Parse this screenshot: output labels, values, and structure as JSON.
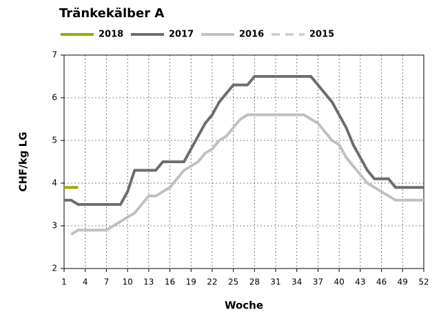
{
  "chart_data": {
    "type": "line",
    "title": "Tränkekälber A",
    "xlabel": "Woche",
    "ylabel": "CHF/kg LG",
    "x": [
      1,
      2,
      3,
      4,
      5,
      6,
      7,
      8,
      9,
      10,
      11,
      12,
      13,
      14,
      15,
      16,
      17,
      18,
      19,
      20,
      21,
      22,
      23,
      24,
      25,
      26,
      27,
      28,
      29,
      30,
      31,
      32,
      33,
      34,
      35,
      36,
      37,
      38,
      39,
      40,
      41,
      42,
      43,
      44,
      45,
      46,
      47,
      48,
      49,
      50,
      51,
      52
    ],
    "series": [
      {
        "name": "2018",
        "color": "#9aaa00",
        "dashed": false,
        "values": [
          3.9,
          3.9,
          3.9,
          null,
          null,
          null,
          null,
          null,
          null,
          null,
          null,
          null,
          null,
          null,
          null,
          null,
          null,
          null,
          null,
          null,
          null,
          null,
          null,
          null,
          null,
          null,
          null,
          null,
          null,
          null,
          null,
          null,
          null,
          null,
          null,
          null,
          null,
          null,
          null,
          null,
          null,
          null,
          null,
          null,
          null,
          null,
          null,
          null,
          null,
          null,
          null,
          null
        ]
      },
      {
        "name": "2017",
        "color": "#6d6d6d",
        "dashed": false,
        "values": [
          3.6,
          3.6,
          3.5,
          3.5,
          3.5,
          3.5,
          3.5,
          3.5,
          3.5,
          3.8,
          4.3,
          4.3,
          4.3,
          4.3,
          4.5,
          4.5,
          4.5,
          4.5,
          4.8,
          5.1,
          5.4,
          5.6,
          5.9,
          6.1,
          6.3,
          6.3,
          6.3,
          6.5,
          6.5,
          6.5,
          6.5,
          6.5,
          6.5,
          6.5,
          6.5,
          6.5,
          6.3,
          6.1,
          5.9,
          5.6,
          5.3,
          4.9,
          4.6,
          4.3,
          4.1,
          4.1,
          4.1,
          3.9,
          3.9,
          3.9,
          3.9,
          3.9
        ]
      },
      {
        "name": "2016",
        "color": "#c0c0c0",
        "dashed": false,
        "values": [
          null,
          2.8,
          2.9,
          2.9,
          2.9,
          2.9,
          2.9,
          3.0,
          3.1,
          3.2,
          3.3,
          3.5,
          3.7,
          3.7,
          3.8,
          3.9,
          4.1,
          4.3,
          4.4,
          4.5,
          4.7,
          4.8,
          5.0,
          5.1,
          5.3,
          5.5,
          5.6,
          5.6,
          5.6,
          5.6,
          5.6,
          5.6,
          5.6,
          5.6,
          5.6,
          5.5,
          5.4,
          5.2,
          5.0,
          4.9,
          4.6,
          4.4,
          4.2,
          4.0,
          3.9,
          3.8,
          3.7,
          3.6,
          3.6,
          3.6,
          3.6,
          3.6
        ]
      },
      {
        "name": "2015",
        "color": "#d0d0d0",
        "dashed": true,
        "values": [
          null,
          null,
          null,
          null,
          null,
          null,
          null,
          null,
          null,
          null,
          null,
          null,
          null,
          null,
          null,
          null,
          null,
          null,
          null,
          null,
          null,
          null,
          null,
          null,
          null,
          null,
          null,
          null,
          null,
          null,
          null,
          null,
          null,
          null,
          null,
          null,
          null,
          null,
          null,
          null,
          null,
          null,
          null,
          null,
          null,
          null,
          null,
          null,
          null,
          null,
          null,
          null
        ]
      }
    ],
    "xlim": [
      1,
      52
    ],
    "xticks": [
      1,
      4,
      7,
      10,
      13,
      16,
      19,
      22,
      25,
      28,
      31,
      34,
      37,
      40,
      43,
      46,
      49,
      52
    ],
    "ylim": [
      2,
      7
    ],
    "yticks": [
      2,
      3,
      4,
      5,
      6,
      7
    ],
    "grid": true
  }
}
